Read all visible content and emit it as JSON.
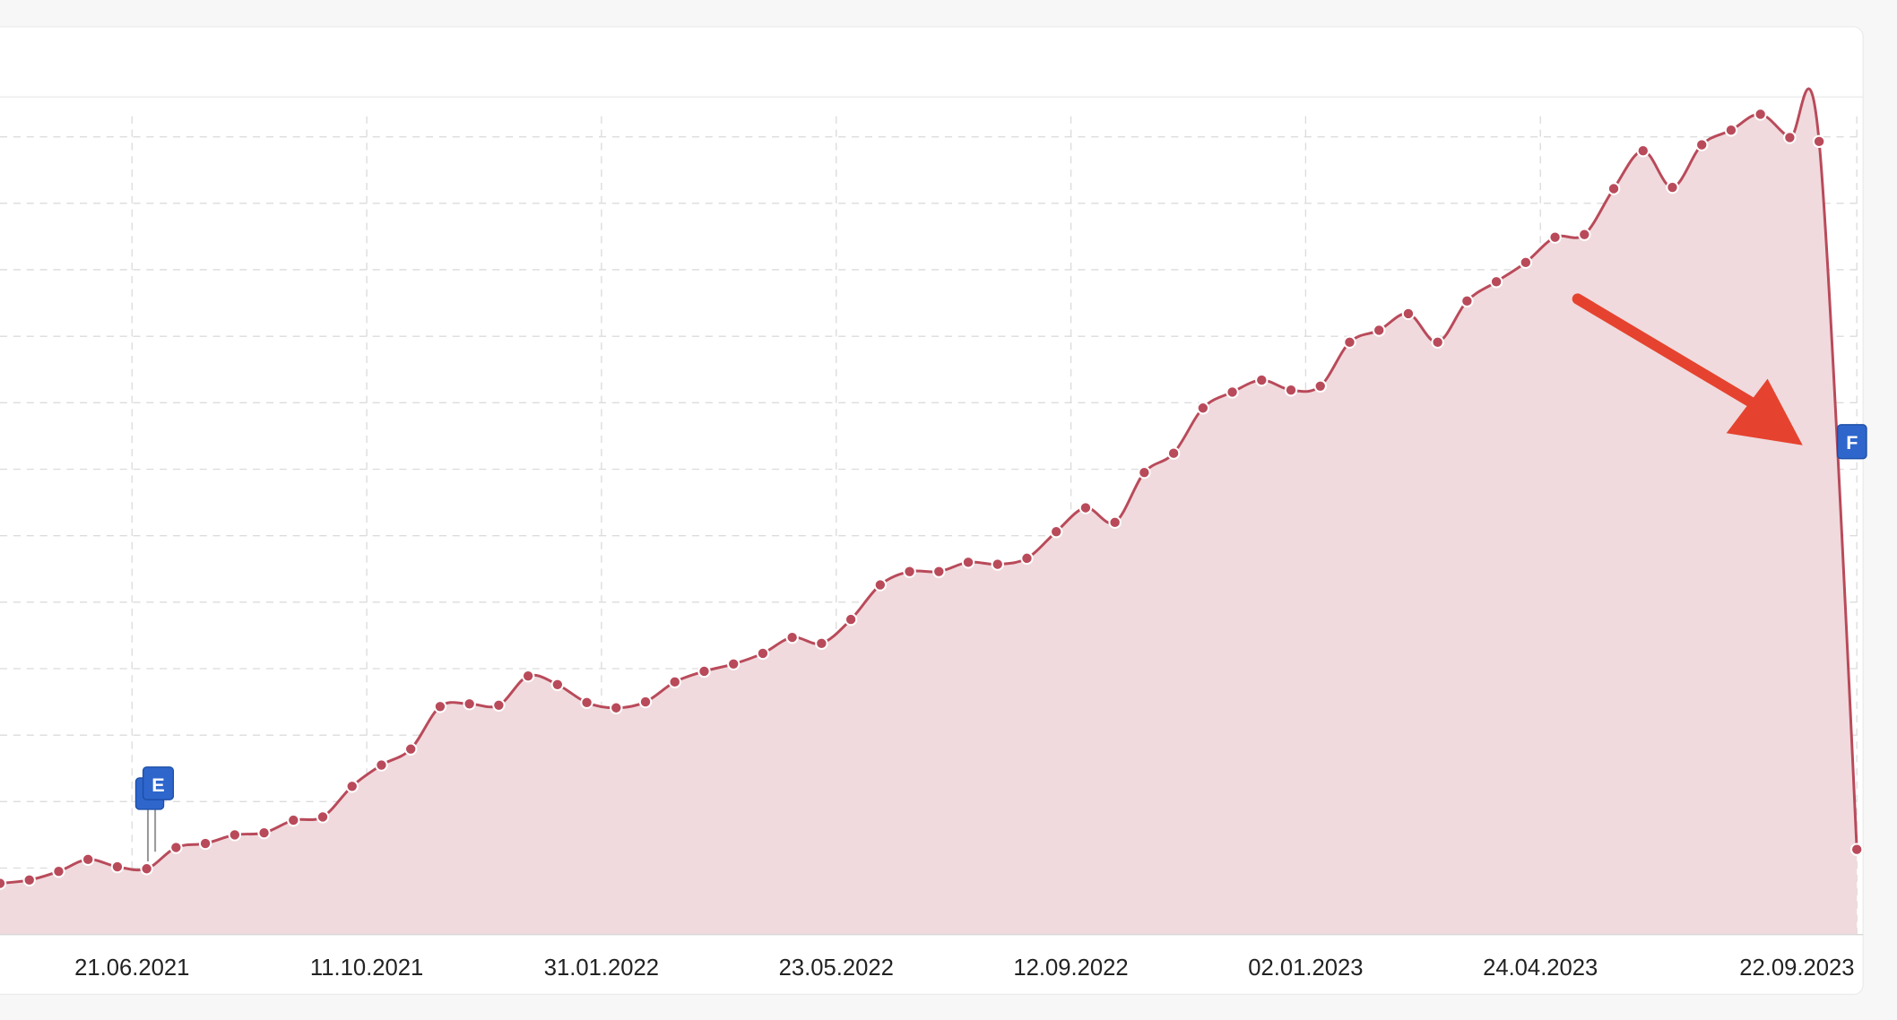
{
  "chart_data": {
    "type": "line",
    "x": [
      "19.04.2021",
      "03.05.2021",
      "17.05.2021",
      "31.05.2021",
      "14.06.2021",
      "28.06.2021",
      "12.07.2021",
      "26.07.2021",
      "09.08.2021",
      "23.08.2021",
      "06.09.2021",
      "20.09.2021",
      "04.10.2021",
      "18.10.2021",
      "01.11.2021",
      "15.11.2021",
      "29.11.2021",
      "13.12.2021",
      "27.12.2021",
      "10.01.2022",
      "24.01.2022",
      "07.02.2022",
      "21.02.2022",
      "07.03.2022",
      "21.03.2022",
      "04.04.2022",
      "18.04.2022",
      "02.05.2022",
      "16.05.2022",
      "30.05.2022",
      "13.06.2022",
      "27.06.2022",
      "11.07.2022",
      "25.07.2022",
      "08.08.2022",
      "22.08.2022",
      "05.09.2022",
      "19.09.2022",
      "03.10.2022",
      "17.10.2022",
      "31.10.2022",
      "14.11.2022",
      "28.11.2022",
      "12.12.2022",
      "26.12.2022",
      "09.01.2023",
      "23.01.2023",
      "06.02.2023",
      "20.02.2023",
      "06.03.2023",
      "20.03.2023",
      "03.04.2023",
      "17.04.2023",
      "01.05.2023",
      "15.05.2023",
      "29.05.2023",
      "12.06.2023",
      "26.06.2023",
      "10.07.2023",
      "24.07.2023",
      "07.08.2023",
      "21.08.2023",
      "04.09.2023",
      "22.09.2023"
    ],
    "values": [
      0.77,
      0.82,
      0.95,
      1.13,
      1.02,
      0.99,
      1.31,
      1.37,
      1.5,
      1.53,
      1.72,
      1.77,
      2.23,
      2.55,
      2.79,
      3.43,
      3.47,
      3.45,
      3.89,
      3.76,
      3.49,
      3.41,
      3.5,
      3.8,
      3.96,
      4.07,
      4.23,
      4.47,
      4.38,
      4.74,
      5.26,
      5.46,
      5.46,
      5.6,
      5.57,
      5.66,
      6.06,
      6.42,
      6.2,
      6.95,
      7.24,
      7.92,
      8.16,
      8.34,
      8.19,
      8.25,
      8.91,
      9.09,
      9.34,
      8.91,
      9.53,
      9.82,
      10.11,
      10.49,
      10.53,
      11.22,
      11.79,
      11.24,
      11.88,
      12.1,
      12.34,
      11.99,
      11.93,
      1.28
    ],
    "color": "#b94a5a",
    "fill_color": "#f0dadd",
    "xlim": [
      "19.04.2021",
      "25.09.2023"
    ],
    "xticks": [
      "21.06.2021",
      "11.10.2021",
      "31.01.2022",
      "23.05.2022",
      "12.09.2022",
      "02.01.2023",
      "24.04.2023",
      "22.09.2023"
    ],
    "ylim": [
      0,
      12.6
    ],
    "y_gridlines": [
      1,
      2,
      3,
      4,
      5,
      6,
      7,
      8,
      9,
      10,
      11,
      12
    ],
    "grid": true,
    "annotations": [
      {
        "label": "E",
        "x": "28.06.2021"
      },
      {
        "label": "F",
        "x": "22.09.2023"
      }
    ]
  }
}
